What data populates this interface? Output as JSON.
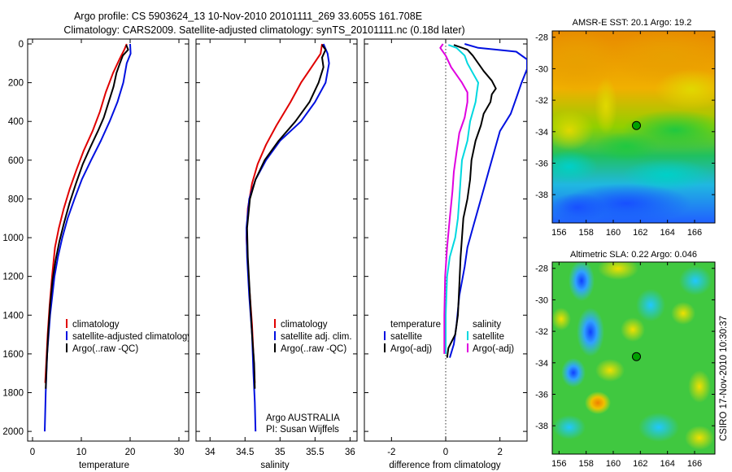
{
  "header": {
    "title_line1": "Argo profile: CS 5903624_13 10-Nov-2010 20101111_269 33.605S 161.708E",
    "title_line2": "Climatology: CARS2009. Satellite-adjusted climatology: synTS_20101111.nc (0.18d later)"
  },
  "colors": {
    "climatology": "#e00000",
    "satellite": "#0010e0",
    "argo": "#000000",
    "sat_salinity": "#00d8e0",
    "argo_salinity": "#e000e0",
    "marker": "#00a000"
  },
  "chart_data": [
    {
      "id": "temperature",
      "type": "line",
      "xlabel": "temperature",
      "ylabel": "",
      "xlim": [
        -1,
        32
      ],
      "ylim": [
        0,
        2050
      ],
      "y_reversed": true,
      "xticks": [
        "0",
        "10",
        "20",
        "30"
      ],
      "xtick_values": [
        0,
        10,
        20,
        30
      ],
      "yticks": [
        "0",
        "200",
        "400",
        "600",
        "800",
        "1000",
        "1200",
        "1400",
        "1600",
        "1800",
        "2000"
      ],
      "ytick_values": [
        0,
        200,
        400,
        600,
        800,
        1000,
        1200,
        1400,
        1600,
        1800,
        2000
      ],
      "legend": [
        "climatology",
        "satellite-adjusted climatology",
        "Argo(..raw -QC)"
      ],
      "legend_position": "lower-right",
      "series": [
        {
          "key": "climatology",
          "name": "climatology",
          "color": "#e00000",
          "points": [
            [
              19.3,
              0
            ],
            [
              18.8,
              30
            ],
            [
              17.8,
              80
            ],
            [
              16.5,
              150
            ],
            [
              15.0,
              250
            ],
            [
              13.8,
              350
            ],
            [
              12.3,
              450
            ],
            [
              10.5,
              550
            ],
            [
              9.0,
              650
            ],
            [
              7.6,
              750
            ],
            [
              6.4,
              850
            ],
            [
              5.4,
              950
            ],
            [
              4.6,
              1050
            ],
            [
              4.0,
              1200
            ],
            [
              3.5,
              1350
            ],
            [
              3.1,
              1500
            ],
            [
              2.8,
              1650
            ],
            [
              2.6,
              1750
            ]
          ]
        },
        {
          "key": "satellite",
          "name": "satellite-adjusted climatology",
          "color": "#0010e0",
          "points": [
            [
              20.0,
              0
            ],
            [
              20.1,
              50
            ],
            [
              19.3,
              100
            ],
            [
              18.6,
              200
            ],
            [
              17.4,
              300
            ],
            [
              15.8,
              400
            ],
            [
              14.0,
              500
            ],
            [
              12.0,
              600
            ],
            [
              10.1,
              700
            ],
            [
              8.6,
              800
            ],
            [
              7.2,
              900
            ],
            [
              6.1,
              1000
            ],
            [
              5.2,
              1100
            ],
            [
              4.5,
              1200
            ],
            [
              3.6,
              1400
            ],
            [
              3.0,
              1600
            ],
            [
              2.7,
              1800
            ],
            [
              2.5,
              2000
            ]
          ]
        },
        {
          "key": "argo",
          "name": "Argo(..raw -QC)",
          "color": "#000000",
          "points": [
            [
              19.2,
              5
            ],
            [
              19.6,
              30
            ],
            [
              18.5,
              60
            ],
            [
              17.9,
              100
            ],
            [
              17.2,
              150
            ],
            [
              16.6,
              220
            ],
            [
              15.6,
              300
            ],
            [
              14.6,
              380
            ],
            [
              13.4,
              450
            ],
            [
              11.9,
              530
            ],
            [
              10.3,
              620
            ],
            [
              8.9,
              720
            ],
            [
              7.6,
              820
            ],
            [
              6.5,
              920
            ],
            [
              5.5,
              1020
            ],
            [
              4.7,
              1120
            ],
            [
              4.1,
              1220
            ],
            [
              3.6,
              1350
            ],
            [
              3.2,
              1500
            ],
            [
              2.9,
              1650
            ],
            [
              2.7,
              1780
            ]
          ]
        }
      ]
    },
    {
      "id": "salinity",
      "type": "line",
      "xlabel": "salinity",
      "ylabel": "",
      "xlim": [
        33.8,
        36.1
      ],
      "ylim": [
        0,
        2050
      ],
      "y_reversed": true,
      "xticks": [
        "34",
        "34.5",
        "35",
        "35.5",
        "36"
      ],
      "xtick_values": [
        34,
        34.5,
        35,
        35.5,
        36
      ],
      "yticks": [],
      "ytick_values": [
        0,
        200,
        400,
        600,
        800,
        1000,
        1200,
        1400,
        1600,
        1800,
        2000
      ],
      "legend": [
        "climatology",
        "satellite adj. clim.",
        "Argo(..raw -QC)"
      ],
      "legend_position": "lower-right",
      "annotation_line1": "Argo AUSTRALIA",
      "annotation_line2": "PI: Susan Wijffels",
      "series": [
        {
          "key": "climatology",
          "name": "climatology",
          "color": "#e00000",
          "points": [
            [
              35.6,
              0
            ],
            [
              35.58,
              50
            ],
            [
              35.45,
              120
            ],
            [
              35.3,
              200
            ],
            [
              35.15,
              300
            ],
            [
              34.95,
              420
            ],
            [
              34.8,
              520
            ],
            [
              34.68,
              620
            ],
            [
              34.6,
              720
            ],
            [
              34.54,
              850
            ],
            [
              34.52,
              1000
            ],
            [
              34.54,
              1150
            ],
            [
              34.57,
              1300
            ],
            [
              34.6,
              1450
            ],
            [
              34.62,
              1600
            ],
            [
              34.64,
              1750
            ]
          ]
        },
        {
          "key": "satellite",
          "name": "satellite adj. clim.",
          "color": "#0010e0",
          "points": [
            [
              35.62,
              0
            ],
            [
              35.68,
              50
            ],
            [
              35.7,
              100
            ],
            [
              35.65,
              200
            ],
            [
              35.5,
              300
            ],
            [
              35.3,
              400
            ],
            [
              35.0,
              500
            ],
            [
              34.8,
              600
            ],
            [
              34.65,
              700
            ],
            [
              34.56,
              800
            ],
            [
              34.52,
              950
            ],
            [
              34.53,
              1100
            ],
            [
              34.56,
              1300
            ],
            [
              34.6,
              1500
            ],
            [
              34.62,
              1700
            ],
            [
              34.64,
              1850
            ],
            [
              34.65,
              2000
            ]
          ]
        },
        {
          "key": "argo",
          "name": "Argo(..raw -QC)",
          "color": "#000000",
          "points": [
            [
              35.6,
              5
            ],
            [
              35.65,
              30
            ],
            [
              35.6,
              70
            ],
            [
              35.62,
              120
            ],
            [
              35.55,
              200
            ],
            [
              35.42,
              300
            ],
            [
              35.22,
              400
            ],
            [
              34.98,
              500
            ],
            [
              34.78,
              600
            ],
            [
              34.65,
              700
            ],
            [
              34.57,
              800
            ],
            [
              34.53,
              950
            ],
            [
              34.54,
              1100
            ],
            [
              34.57,
              1300
            ],
            [
              34.6,
              1500
            ],
            [
              34.63,
              1650
            ],
            [
              34.64,
              1780
            ]
          ]
        }
      ]
    },
    {
      "id": "difference",
      "type": "line",
      "xlabel": "difference from climatology",
      "ylabel": "",
      "xlim": [
        -3,
        3
      ],
      "ylim": [
        0,
        2050
      ],
      "y_reversed": true,
      "xticks": [
        "-2",
        "0",
        "2"
      ],
      "xtick_values": [
        -2,
        0,
        2
      ],
      "yticks": [],
      "ytick_values": [
        0,
        200,
        400,
        600,
        800,
        1000,
        1200,
        1400,
        1600,
        1800,
        2000
      ],
      "legend": [
        "temperature",
        "satellite",
        "Argo(-adj)",
        "salinity",
        "satellite",
        "Argo(-adj)"
      ],
      "legend_position": "lower-center",
      "series": [
        {
          "key": "temp_sat",
          "name": "satellite",
          "color": "#0010e0",
          "points": [
            [
              0.7,
              0
            ],
            [
              1.2,
              20
            ],
            [
              2.6,
              40
            ],
            [
              3.0,
              80
            ],
            [
              3.0,
              130
            ],
            [
              2.8,
              200
            ],
            [
              2.6,
              280
            ],
            [
              2.4,
              360
            ],
            [
              2.0,
              450
            ],
            [
              1.8,
              550
            ],
            [
              1.6,
              650
            ],
            [
              1.4,
              750
            ],
            [
              1.2,
              850
            ],
            [
              1.0,
              950
            ],
            [
              0.8,
              1050
            ],
            [
              0.7,
              1150
            ],
            [
              0.5,
              1300
            ],
            [
              0.4,
              1450
            ],
            [
              0.3,
              1550
            ],
            [
              0.15,
              1620
            ]
          ]
        },
        {
          "key": "temp_argo",
          "name": "Argo(-adj)",
          "color": "#000000",
          "points": [
            [
              0.3,
              5
            ],
            [
              0.8,
              30
            ],
            [
              1.0,
              60
            ],
            [
              1.2,
              100
            ],
            [
              1.4,
              140
            ],
            [
              1.7,
              190
            ],
            [
              1.85,
              230
            ],
            [
              1.7,
              260
            ],
            [
              1.65,
              300
            ],
            [
              1.4,
              360
            ],
            [
              1.3,
              420
            ],
            [
              1.1,
              500
            ],
            [
              0.95,
              600
            ],
            [
              0.9,
              700
            ],
            [
              0.8,
              800
            ],
            [
              0.65,
              900
            ],
            [
              0.6,
              1000
            ],
            [
              0.55,
              1100
            ],
            [
              0.5,
              1250
            ],
            [
              0.45,
              1400
            ],
            [
              0.35,
              1500
            ],
            [
              0.1,
              1570
            ],
            [
              0.05,
              1620
            ]
          ]
        },
        {
          "key": "sal_sat",
          "name": "satellite",
          "color": "#00d8e0",
          "points": [
            [
              0.1,
              5
            ],
            [
              0.4,
              20
            ],
            [
              0.7,
              60
            ],
            [
              0.8,
              100
            ],
            [
              1.0,
              150
            ],
            [
              1.2,
              200
            ],
            [
              1.15,
              250
            ],
            [
              1.1,
              300
            ],
            [
              0.9,
              400
            ],
            [
              0.8,
              500
            ],
            [
              0.6,
              600
            ],
            [
              0.55,
              700
            ],
            [
              0.5,
              800
            ],
            [
              0.45,
              900
            ],
            [
              0.35,
              1000
            ],
            [
              0.15,
              1100
            ],
            [
              0.05,
              1200
            ],
            [
              0.0,
              1400
            ],
            [
              0.0,
              1600
            ]
          ]
        },
        {
          "key": "sal_argo",
          "name": "Argo(-adj)",
          "color": "#e000e0",
          "points": [
            [
              -0.1,
              0
            ],
            [
              -0.2,
              20
            ],
            [
              0.0,
              60
            ],
            [
              0.2,
              120
            ],
            [
              0.6,
              200
            ],
            [
              0.8,
              250
            ],
            [
              0.8,
              300
            ],
            [
              0.7,
              380
            ],
            [
              0.5,
              460
            ],
            [
              0.4,
              560
            ],
            [
              0.3,
              660
            ],
            [
              0.25,
              760
            ],
            [
              0.15,
              900
            ],
            [
              0.05,
              1050
            ],
            [
              -0.02,
              1200
            ],
            [
              -0.05,
              1400
            ],
            [
              -0.05,
              1600
            ]
          ]
        }
      ]
    },
    {
      "id": "amsr_sst",
      "type": "heatmap",
      "title": "AMSR-E SST: 20.1  Argo: 19.2",
      "xlim": [
        155.5,
        167.5
      ],
      "ylim": [
        -39.8,
        -27.6
      ],
      "xticks": [
        "156",
        "158",
        "160",
        "162",
        "164",
        "166"
      ],
      "xtick_values": [
        156,
        158,
        160,
        162,
        164,
        166
      ],
      "yticks": [
        "-28",
        "-30",
        "-32",
        "-34",
        "-36",
        "-38"
      ],
      "ytick_values": [
        -28,
        -30,
        -32,
        -34,
        -36,
        -38
      ],
      "marker": {
        "lon": 161.708,
        "lat": -33.605
      }
    },
    {
      "id": "altimetric_sla",
      "type": "heatmap",
      "title": "Altimetric SLA: 0.22  Argo: 0.046",
      "xlim": [
        155.5,
        167.5
      ],
      "ylim": [
        -39.8,
        -27.6
      ],
      "xticks": [
        "156",
        "158",
        "160",
        "162",
        "164",
        "166"
      ],
      "xtick_values": [
        156,
        158,
        160,
        162,
        164,
        166
      ],
      "yticks": [
        "-28",
        "-30",
        "-32",
        "-34",
        "-36",
        "-38"
      ],
      "ytick_values": [
        -28,
        -30,
        -32,
        -34,
        -36,
        -38
      ],
      "marker": {
        "lon": 161.708,
        "lat": -33.605
      }
    }
  ],
  "footer": {
    "credit": "CSIRO 17-Nov-2010 10:30:37"
  }
}
